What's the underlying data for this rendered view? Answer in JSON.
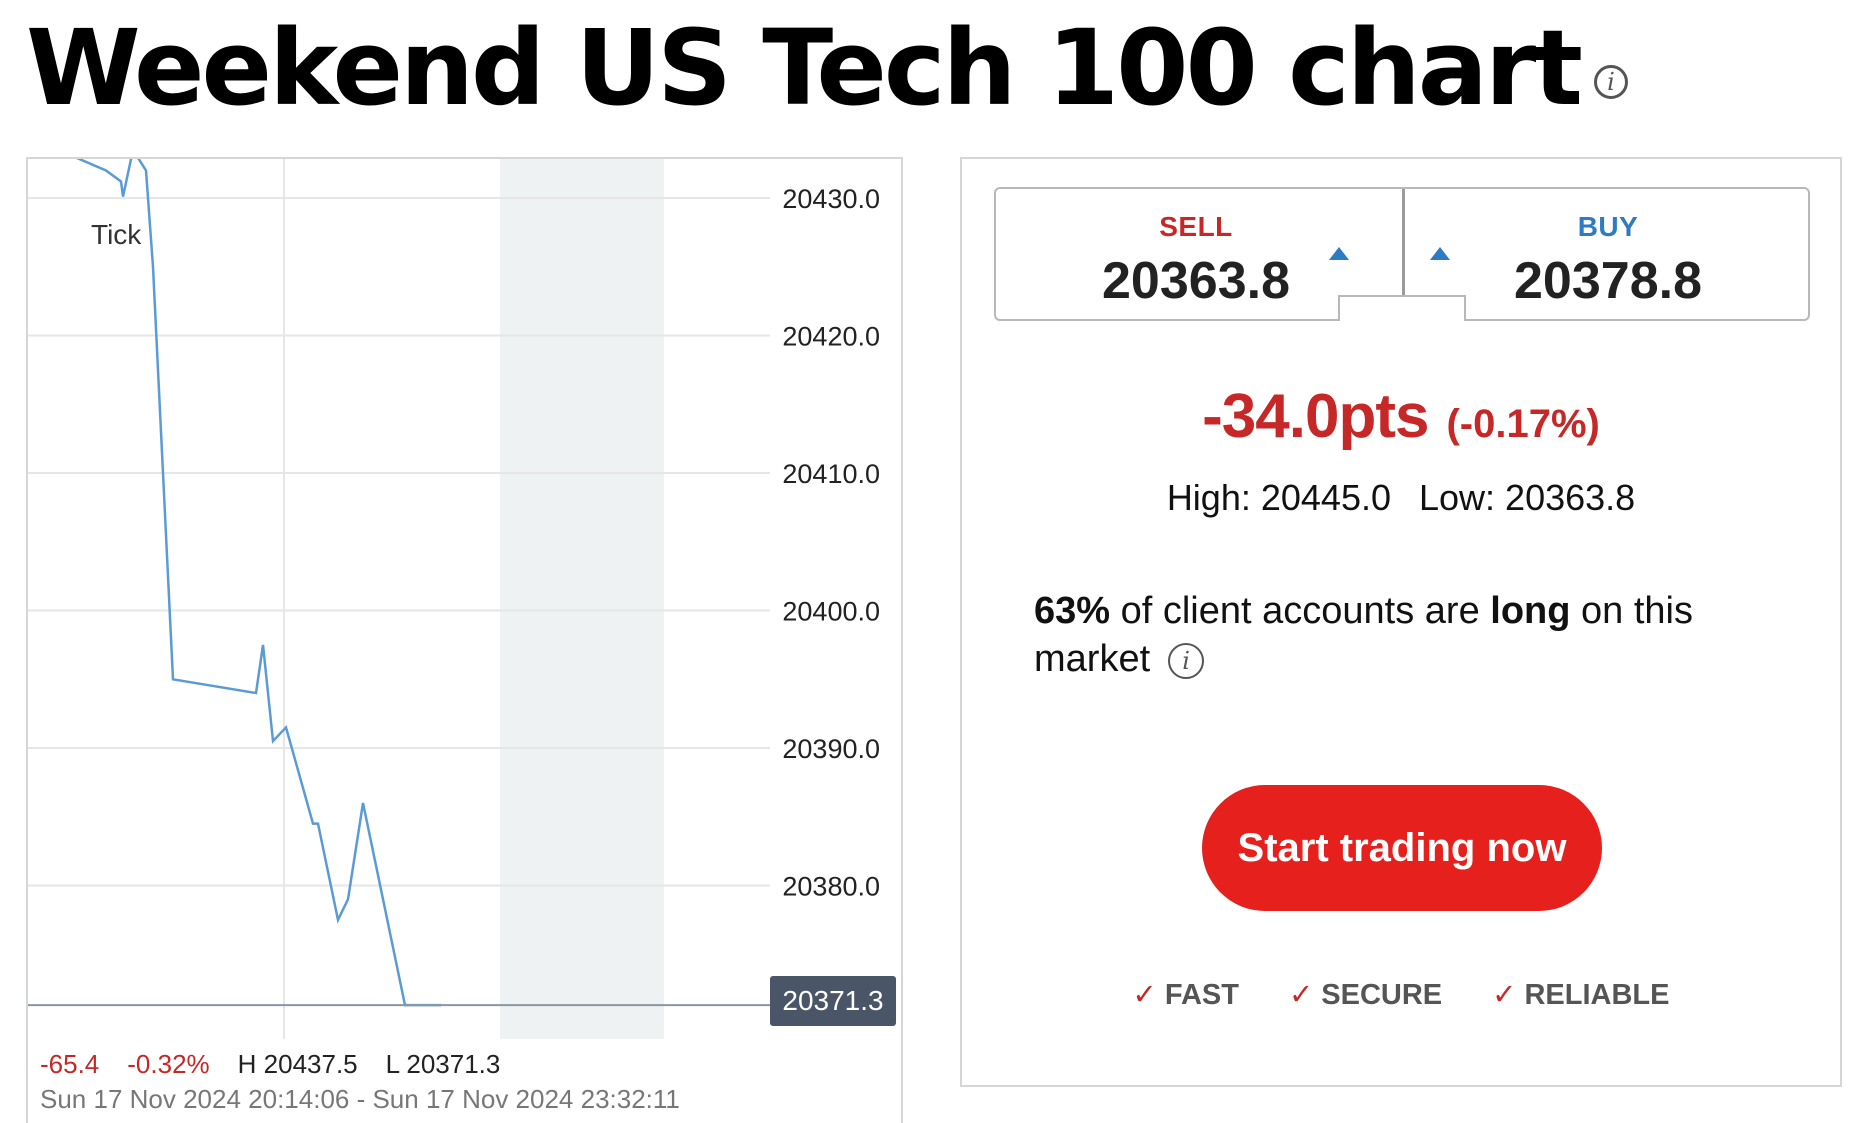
{
  "page": {
    "title": "Weekend US Tech 100 chart"
  },
  "chart": {
    "tick_label": "Tick",
    "y_tick_labels": [
      "20430.0",
      "20420.0",
      "20410.0",
      "20400.0",
      "20390.0",
      "20380.0"
    ],
    "current_price": "20371.3",
    "footer": {
      "change": "-65.4",
      "change_pct": "-0.32%",
      "high": "H 20437.5",
      "low": "L 20371.3",
      "range": "Sun 17 Nov 2024 20:14:06 - Sun 17 Nov 2024 23:32:11"
    },
    "colors": {
      "line": "#5b9bd5",
      "grid": "#e6e6e6",
      "shade": "#eef2f3",
      "price_tag": "#4a5568"
    }
  },
  "chart_data": {
    "type": "line",
    "ylim": [
      20369.0,
      20433.0
    ],
    "y_ticks": [
      20430,
      20420,
      20410,
      20400,
      20390,
      20380
    ],
    "series": [
      {
        "values": [
          20433.0,
          20432.0,
          20431.2,
          20430.1,
          20433.5,
          20432.0,
          20425.0,
          20395.0,
          20394.0,
          20397.5,
          20390.5,
          20391.5,
          20384.5,
          20384.5,
          20377.5,
          20379.0,
          20386.0,
          20371.3,
          20371.3
        ]
      }
    ],
    "current_value": 20371.3
  },
  "card": {
    "sell_label": "SELL",
    "sell_price": "20363.8",
    "buy_label": "BUY",
    "buy_price": "20378.8",
    "change_pts": "-34.0pts",
    "change_pct": "(-0.17%)",
    "high": "High: 20445.0",
    "low": "Low: 20363.8",
    "sentiment_pct": "63%",
    "sentiment_text_1": " of client accounts are ",
    "sentiment_long": "long",
    "sentiment_text_2": " on this market",
    "cta_label": "Start trading now",
    "features": [
      "FAST",
      "SECURE",
      "RELIABLE"
    ],
    "colors": {
      "sell": "#c62828",
      "buy": "#2e7bc4",
      "cta": "#e5201d"
    }
  },
  "icons": {
    "title_info": "info-icon",
    "sentiment_info": "info-icon",
    "check": "check-icon"
  }
}
